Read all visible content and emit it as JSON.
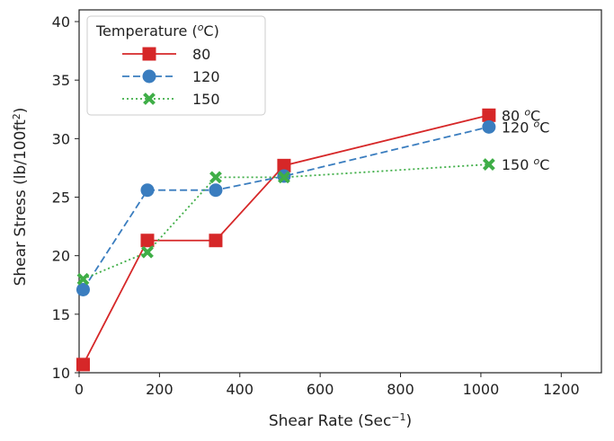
{
  "chart_data": {
    "type": "line",
    "xlabel": "Shear Rate (Sec",
    "xlabel_sup": "−1",
    "xlabel_close": ")",
    "ylabel": "Shear Stress (lb/100ft",
    "ylabel_sup": "2",
    "ylabel_close": ")",
    "xlim": [
      0,
      1300
    ],
    "ylim": [
      10,
      41
    ],
    "xticks": [
      0,
      200,
      400,
      600,
      800,
      1000,
      1200
    ],
    "yticks": [
      10,
      15,
      20,
      25,
      30,
      35,
      40
    ],
    "grid": false,
    "legend": {
      "title": "Temperature (",
      "title_sup": "o",
      "title_close": "C)",
      "placement": "top-left"
    },
    "series": [
      {
        "name": "80",
        "color": "#d62728",
        "linestyle": "solid",
        "marker": "square",
        "x": [
          10,
          170,
          340,
          510,
          1020
        ],
        "y": [
          10.7,
          21.3,
          21.3,
          27.7,
          32.0
        ],
        "label": "80",
        "label_unit": "C"
      },
      {
        "name": "120",
        "color": "#3a7dbf",
        "linestyle": "dashed",
        "marker": "circle",
        "x": [
          10,
          170,
          340,
          510,
          1020
        ],
        "y": [
          17.1,
          25.6,
          25.6,
          26.8,
          31.0
        ],
        "label": "120",
        "label_unit": "C"
      },
      {
        "name": "150",
        "color": "#3fae47",
        "linestyle": "dotted",
        "marker": "x",
        "x": [
          10,
          170,
          340,
          510,
          1020
        ],
        "y": [
          18.0,
          20.3,
          26.7,
          26.7,
          27.8
        ],
        "label": "150",
        "label_unit": "C"
      }
    ]
  }
}
